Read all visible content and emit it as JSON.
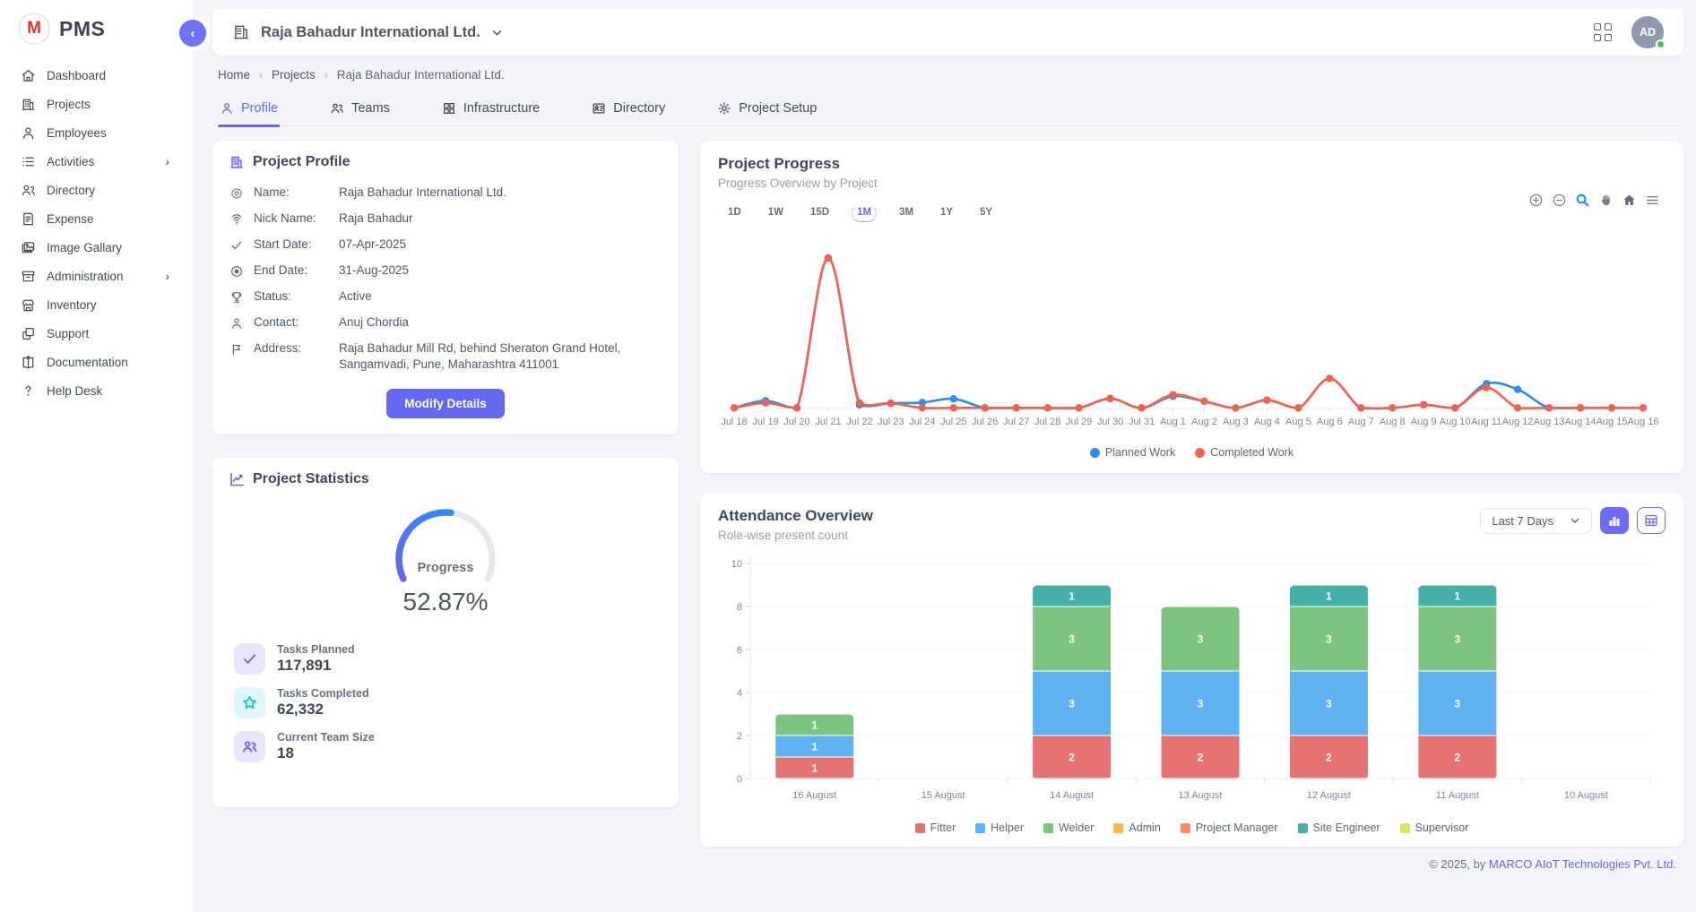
{
  "app": {
    "name": "PMS",
    "collapse_icon": "‹"
  },
  "sidebar": {
    "items": [
      {
        "label": "Dashboard",
        "icon": "home-icon",
        "has_submenu": false
      },
      {
        "label": "Projects",
        "icon": "building-icon",
        "has_submenu": false
      },
      {
        "label": "Employees",
        "icon": "person-icon",
        "has_submenu": false
      },
      {
        "label": "Activities",
        "icon": "list-icon",
        "has_submenu": true
      },
      {
        "label": "Directory",
        "icon": "people-icon",
        "has_submenu": false
      },
      {
        "label": "Expense",
        "icon": "receipt-icon",
        "has_submenu": false
      },
      {
        "label": "Image Gallary",
        "icon": "image-icon",
        "has_submenu": false
      },
      {
        "label": "Administration",
        "icon": "archive-icon",
        "has_submenu": true
      },
      {
        "label": "Inventory",
        "icon": "store-icon",
        "has_submenu": false
      },
      {
        "label": "Support",
        "icon": "copy-icon",
        "has_submenu": false
      },
      {
        "label": "Documentation",
        "icon": "book-icon",
        "has_submenu": false
      },
      {
        "label": "Help Desk",
        "icon": "question-icon",
        "has_submenu": false
      }
    ]
  },
  "header": {
    "company": "Raja Bahadur International Ltd.",
    "icons": [
      "building-icon",
      "chevron-down-icon",
      "apps-grid-icon"
    ],
    "avatar_initials": "AD",
    "avatar_status_color": "#2fcc59"
  },
  "breadcrumb": {
    "items": [
      "Home",
      "Projects",
      "Raja Bahadur International Ltd."
    ]
  },
  "tabs": [
    {
      "label": "Profile",
      "icon": "person-icon",
      "active": true
    },
    {
      "label": "Teams",
      "icon": "people-icon",
      "active": false
    },
    {
      "label": "Infrastructure",
      "icon": "grid-icon",
      "active": false
    },
    {
      "label": "Directory",
      "icon": "id-card-icon",
      "active": false
    },
    {
      "label": "Project Setup",
      "icon": "gear-icon",
      "active": false
    }
  ],
  "profile_card": {
    "title": "Project Profile",
    "fields": [
      {
        "icon": "gear-icon",
        "label": "Name:",
        "value": "Raja Bahadur International Ltd."
      },
      {
        "icon": "fingerprint-icon",
        "label": "Nick Name:",
        "value": "Raja Bahadur"
      },
      {
        "icon": "check-icon",
        "label": "Start Date:",
        "value": "07-Apr-2025"
      },
      {
        "icon": "record-circle-icon",
        "label": "End Date:",
        "value": "31-Aug-2025"
      },
      {
        "icon": "trophy-icon",
        "label": "Status:",
        "value": "Active"
      },
      {
        "icon": "person-icon",
        "label": "Contact:",
        "value": "Anuj Chordia"
      },
      {
        "icon": "flag-icon",
        "label": "Address:",
        "value": "Raja Bahadur Mill Rd, behind Sheraton Grand Hotel, Sangamvadi, Pune, Maharashtra 411001"
      }
    ],
    "button_label": "Modify Details"
  },
  "stats_card": {
    "title": "Project Statistics",
    "gauge": {
      "label": "Progress",
      "value": 52.87,
      "display": "52.87%",
      "color_start": "#6366f1",
      "color_end": "#2196f3",
      "track_color": "#e6e8ee"
    },
    "items": [
      {
        "icon": "check-icon",
        "label": "Tasks Planned",
        "value": "117,891"
      },
      {
        "icon": "star-icon",
        "label": "Tasks Completed",
        "value": "62,332"
      },
      {
        "icon": "team-icon",
        "label": "Current Team Size",
        "value": "18"
      }
    ]
  },
  "progress_card": {
    "title": "Project Progress",
    "subtitle": "Progress Overview by Project",
    "ranges": [
      "1D",
      "1W",
      "15D",
      "1M",
      "3M",
      "1Y",
      "5Y"
    ],
    "active_range": "1M",
    "toolbar_icons": [
      "zoom-in-icon",
      "zoom-out-icon",
      "selection-zoom-icon",
      "pan-hand-icon",
      "home-icon",
      "menu-icon"
    ]
  },
  "attendance_card": {
    "title": "Attendance Overview",
    "subtitle": "Role-wise present count",
    "filter_value": "Last 7 Days",
    "view_buttons": [
      "bar-chart-icon",
      "table-icon"
    ]
  },
  "footer": {
    "prefix": "© 2025, by ",
    "link": "MARCO AIoT Technologies Pvt. Ltd."
  },
  "chart_data": [
    {
      "type": "line",
      "title": "Project Progress",
      "x": [
        "Jul 18",
        "Jul 19",
        "Jul 20",
        "Jul 21",
        "Jul 22",
        "Jul 23",
        "Jul 24",
        "Jul 25",
        "Jul 26",
        "Jul 27",
        "Jul 28",
        "Jul 29",
        "Jul 30",
        "Jul 31",
        "Aug 1",
        "Aug 2",
        "Aug 3",
        "Aug 4",
        "Aug 5",
        "Aug 6",
        "Aug 7",
        "Aug 8",
        "Aug 9",
        "Aug 10",
        "Aug 11",
        "Aug 12",
        "Aug 13",
        "Aug 14",
        "Aug 15",
        "Aug 16"
      ],
      "series": [
        {
          "name": "Planned Work",
          "color": "#2d8cf0",
          "values": [
            2,
            25,
            2,
            480,
            12,
            17,
            19,
            31,
            2,
            2,
            2,
            2,
            32,
            2,
            39,
            23,
            2,
            27,
            2,
            96,
            2,
            2,
            12,
            2,
            79,
            61,
            2,
            2,
            2,
            2
          ]
        },
        {
          "name": "Completed Work",
          "color": "#f4624d",
          "values": [
            2,
            18,
            2,
            480,
            18,
            17,
            2,
            2,
            2,
            2,
            2,
            2,
            32,
            2,
            44,
            23,
            2,
            27,
            2,
            96,
            2,
            2,
            12,
            2,
            67,
            2,
            2,
            2,
            2,
            2
          ]
        }
      ],
      "ylim": [
        0,
        520
      ],
      "grid": false,
      "legend_position": "bottom"
    },
    {
      "type": "bar",
      "stacked": true,
      "title": "Attendance Overview",
      "categories": [
        "16 August",
        "15 August",
        "14 August",
        "13 August",
        "12 August",
        "11 August",
        "10 August"
      ],
      "series": [
        {
          "name": "Fitter",
          "color": "#e57373",
          "values": [
            1,
            0,
            2,
            2,
            2,
            2,
            0
          ]
        },
        {
          "name": "Helper",
          "color": "#5fb2f2",
          "values": [
            1,
            0,
            3,
            3,
            3,
            3,
            0
          ]
        },
        {
          "name": "Welder",
          "color": "#7cc47f",
          "values": [
            1,
            0,
            3,
            3,
            3,
            3,
            0
          ]
        },
        {
          "name": "Admin",
          "color": "#ffb74d",
          "values": [
            0,
            0,
            0,
            0,
            0,
            0,
            0
          ]
        },
        {
          "name": "Project Manager",
          "color": "#ff8a65",
          "values": [
            0,
            0,
            0,
            0,
            0,
            0,
            0
          ]
        },
        {
          "name": "Site Engineer",
          "color": "#45b0ab",
          "values": [
            0,
            0,
            1,
            0,
            1,
            1,
            0
          ]
        },
        {
          "name": "Supervisor",
          "color": "#d9e45f",
          "values": [
            0,
            0,
            0,
            0,
            0,
            0,
            0
          ]
        }
      ],
      "ylim": [
        0,
        10
      ],
      "yticks": [
        0,
        2,
        4,
        6,
        8,
        10
      ],
      "grid": true,
      "legend_position": "bottom"
    }
  ]
}
